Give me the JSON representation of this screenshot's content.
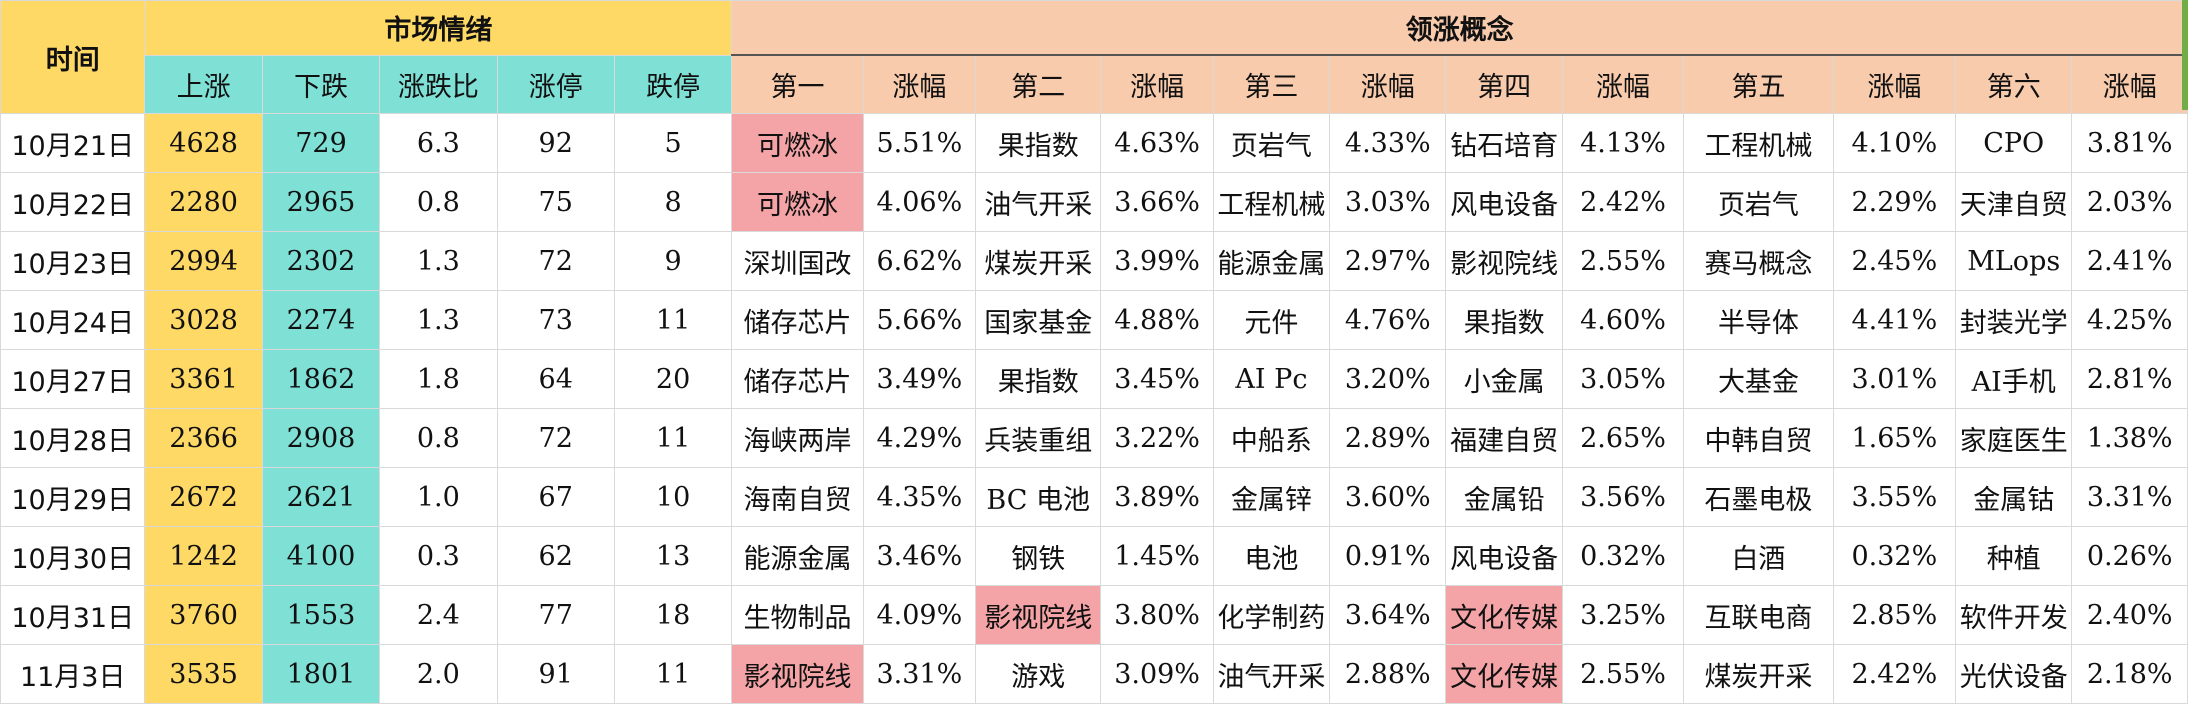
{
  "header": {
    "time": "时间",
    "market_group": "市场情绪",
    "concept_group": "领涨概念",
    "market_cols": [
      "上涨",
      "下跌",
      "涨跌比",
      "涨停",
      "跌停"
    ],
    "concept_cols": [
      "第一",
      "涨幅",
      "第二",
      "涨幅",
      "第三",
      "涨幅",
      "第四",
      "涨幅",
      "第五",
      "涨幅",
      "第六",
      "涨幅"
    ]
  },
  "colors": {
    "market_header": "#ffd966",
    "down_column": "#7fe0d6",
    "concept_header": "#f8cbad",
    "highlight": "#f4a4a6",
    "edge": "#70ad47"
  },
  "rows": [
    {
      "date": "10月21日",
      "up": "4628",
      "down": "729",
      "ratio": "6.3",
      "limit_up": "92",
      "limit_down": "5",
      "concepts": [
        "可燃冰",
        "5.51%",
        "果指数",
        "4.63%",
        "页岩气",
        "4.33%",
        "钻石培育",
        "4.13%",
        "工程机械",
        "4.10%",
        "CPO",
        "3.81%"
      ],
      "highlight": [
        0
      ]
    },
    {
      "date": "10月22日",
      "up": "2280",
      "down": "2965",
      "ratio": "0.8",
      "limit_up": "75",
      "limit_down": "8",
      "concepts": [
        "可燃冰",
        "4.06%",
        "油气开采",
        "3.66%",
        "工程机械",
        "3.03%",
        "风电设备",
        "2.42%",
        "页岩气",
        "2.29%",
        "天津自贸",
        "2.03%"
      ],
      "highlight": [
        0
      ]
    },
    {
      "date": "10月23日",
      "up": "2994",
      "down": "2302",
      "ratio": "1.3",
      "limit_up": "72",
      "limit_down": "9",
      "concepts": [
        "深圳国改",
        "6.62%",
        "煤炭开采",
        "3.99%",
        "能源金属",
        "2.97%",
        "影视院线",
        "2.55%",
        "赛马概念",
        "2.45%",
        "MLops",
        "2.41%"
      ],
      "highlight": []
    },
    {
      "date": "10月24日",
      "up": "3028",
      "down": "2274",
      "ratio": "1.3",
      "limit_up": "73",
      "limit_down": "11",
      "concepts": [
        "储存芯片",
        "5.66%",
        "国家基金",
        "4.88%",
        "元件",
        "4.76%",
        "果指数",
        "4.60%",
        "半导体",
        "4.41%",
        "封装光学",
        "4.25%"
      ],
      "highlight": []
    },
    {
      "date": "10月27日",
      "up": "3361",
      "down": "1862",
      "ratio": "1.8",
      "limit_up": "64",
      "limit_down": "20",
      "concepts": [
        "储存芯片",
        "3.49%",
        "果指数",
        "3.45%",
        "AI Pc",
        "3.20%",
        "小金属",
        "3.05%",
        "大基金",
        "3.01%",
        "AI手机",
        "2.81%"
      ],
      "highlight": []
    },
    {
      "date": "10月28日",
      "up": "2366",
      "down": "2908",
      "ratio": "0.8",
      "limit_up": "72",
      "limit_down": "11",
      "concepts": [
        "海峡两岸",
        "4.29%",
        "兵装重组",
        "3.22%",
        "中船系",
        "2.89%",
        "福建自贸",
        "2.65%",
        "中韩自贸",
        "1.65%",
        "家庭医生",
        "1.38%"
      ],
      "highlight": []
    },
    {
      "date": "10月29日",
      "up": "2672",
      "down": "2621",
      "ratio": "1.0",
      "limit_up": "67",
      "limit_down": "10",
      "concepts": [
        "海南自贸",
        "4.35%",
        "BC 电池",
        "3.89%",
        "金属锌",
        "3.60%",
        "金属铅",
        "3.56%",
        "石墨电极",
        "3.55%",
        "金属钴",
        "3.31%"
      ],
      "highlight": []
    },
    {
      "date": "10月30日",
      "up": "1242",
      "down": "4100",
      "ratio": "0.3",
      "limit_up": "62",
      "limit_down": "13",
      "concepts": [
        "能源金属",
        "3.46%",
        "钢铁",
        "1.45%",
        "电池",
        "0.91%",
        "风电设备",
        "0.32%",
        "白酒",
        "0.32%",
        "种植",
        "0.26%"
      ],
      "highlight": []
    },
    {
      "date": "10月31日",
      "up": "3760",
      "down": "1553",
      "ratio": "2.4",
      "limit_up": "77",
      "limit_down": "18",
      "concepts": [
        "生物制品",
        "4.09%",
        "影视院线",
        "3.80%",
        "化学制药",
        "3.64%",
        "文化传媒",
        "3.25%",
        "互联电商",
        "2.85%",
        "软件开发",
        "2.40%"
      ],
      "highlight": [
        2,
        6
      ]
    },
    {
      "date": "11月3日",
      "up": "3535",
      "down": "1801",
      "ratio": "2.0",
      "limit_up": "91",
      "limit_down": "11",
      "concepts": [
        "影视院线",
        "3.31%",
        "游戏",
        "3.09%",
        "油气开采",
        "2.88%",
        "文化传媒",
        "2.55%",
        "煤炭开采",
        "2.42%",
        "光伏设备",
        "2.18%"
      ],
      "highlight": [
        0,
        6
      ]
    }
  ]
}
